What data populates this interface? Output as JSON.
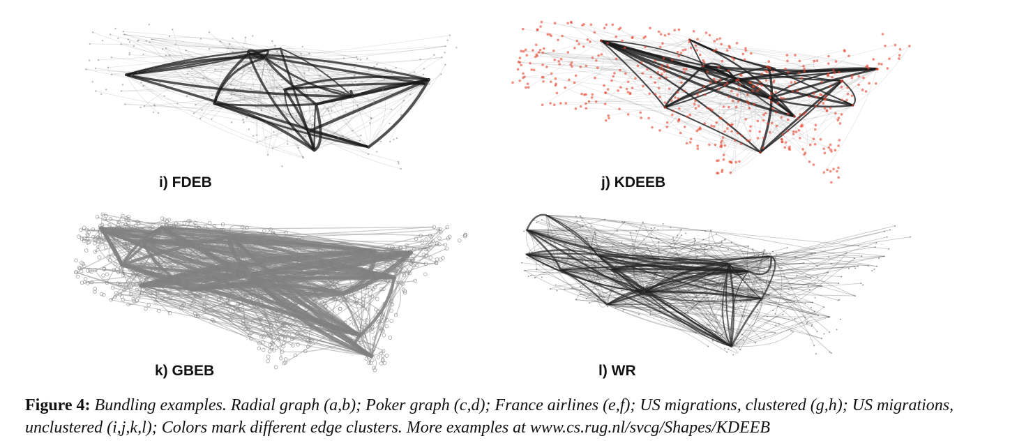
{
  "figure": {
    "panels": [
      {
        "id": "i",
        "label": "i) FDEB",
        "edge_color": "#1a1a1a",
        "node_color": "#777777"
      },
      {
        "id": "j",
        "label": "j) KDEEB",
        "edge_color": "#1a1a1a",
        "node_color": "#e8432c"
      },
      {
        "id": "k",
        "label": "k) GBEB",
        "edge_color": "#808080",
        "node_color": "#8a8a8a"
      },
      {
        "id": "l",
        "label": "l) WR",
        "edge_color": "#222222",
        "node_color": "#555555"
      }
    ],
    "caption": {
      "lead": "Figure 4:",
      "text": "Bundling examples. Radial graph (a,b); Poker graph (c,d); France airlines (e,f); US migrations, clustered (g,h); US migrations, unclustered (i,j,k,l); Colors mark different edge clusters. More examples at www.cs.rug.nl/svcg/Shapes/KDEEB"
    }
  }
}
